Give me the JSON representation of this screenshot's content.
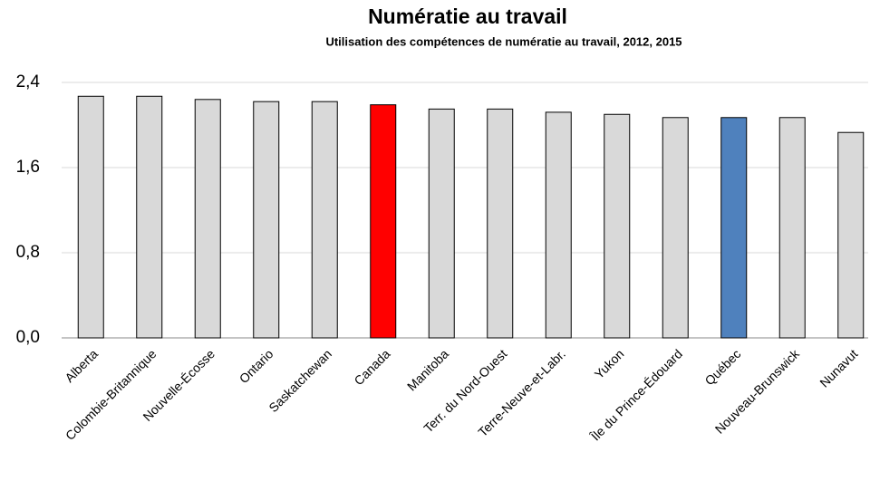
{
  "chart_data": {
    "type": "bar",
    "title": "Numératie au travail",
    "subtitle": "Utilisation des compétences de numératie au travail, 2012, 2015",
    "categories": [
      "Alberta",
      "Colombie-Britannique",
      "Nouvelle-Écosse",
      "Ontario",
      "Saskatchewan",
      "Canada",
      "Manitoba",
      "Terr. du Nord-Ouest",
      "Terre-Neuve-et-Labr.",
      "Yukon",
      "Île du Prince-Édouard",
      "Québec",
      "Nouveau-Brunswick",
      "Nunavut"
    ],
    "values": [
      2.27,
      2.27,
      2.24,
      2.22,
      2.22,
      2.19,
      2.15,
      2.15,
      2.12,
      2.1,
      2.07,
      2.07,
      2.07,
      1.93
    ],
    "colors": [
      "#d9d9d9",
      "#d9d9d9",
      "#d9d9d9",
      "#d9d9d9",
      "#d9d9d9",
      "#ff0000",
      "#d9d9d9",
      "#d9d9d9",
      "#d9d9d9",
      "#d9d9d9",
      "#d9d9d9",
      "#4f81bd",
      "#d9d9d9",
      "#d9d9d9"
    ],
    "ylim": [
      0,
      2.4
    ],
    "yticks": [
      {
        "value": 0,
        "label": "0,0"
      },
      {
        "value": 0.8,
        "label": "0,8"
      },
      {
        "value": 1.6,
        "label": "1,6"
      },
      {
        "value": 2.4,
        "label": "2,4"
      }
    ],
    "grid": true
  }
}
